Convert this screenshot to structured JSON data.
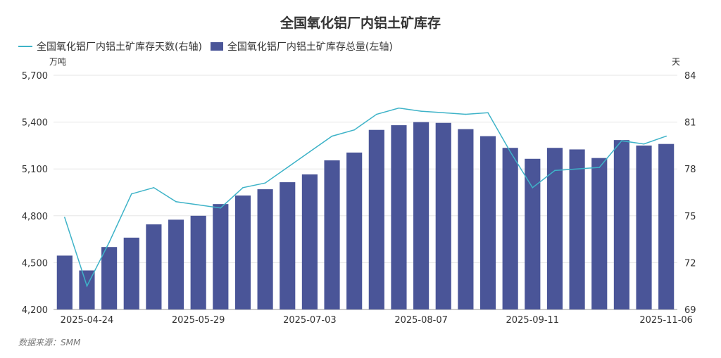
{
  "chart_data": {
    "type": "bar",
    "title": "全国氧化铝厂内铝土矿库存",
    "left_unit": "万吨",
    "right_unit": "天",
    "source": "数据来源：SMM",
    "x_tick_labels": [
      "2025-04-24",
      "2025-05-29",
      "2025-07-03",
      "2025-08-07",
      "2025-09-11",
      "2025-11-06"
    ],
    "x_tick_indices": [
      1,
      6,
      11,
      16,
      21,
      27
    ],
    "left_axis": {
      "min": 4200,
      "max": 5700,
      "ticks": [
        "4,200",
        "4,500",
        "4,800",
        "5,100",
        "5,400",
        "5,700"
      ]
    },
    "right_axis": {
      "min": 69,
      "max": 84,
      "ticks": [
        "69",
        "72",
        "75",
        "78",
        "81",
        "84"
      ]
    },
    "colors": {
      "bar": "#4a5598",
      "line": "#3eb3c8"
    },
    "series": [
      {
        "name": "全国氧化铝厂内铝土矿库存总量(左轴)",
        "type": "bar",
        "axis": "left",
        "values": [
          4545,
          4450,
          4600,
          4660,
          4745,
          4775,
          4800,
          4875,
          4930,
          4970,
          5015,
          5065,
          5155,
          5205,
          5350,
          5380,
          5400,
          5395,
          5355,
          5310,
          5235,
          5165,
          5235,
          5225,
          5170,
          5285,
          5250,
          5260
        ]
      },
      {
        "name": "全国氧化铝厂内铝土矿库存天数(右轴)",
        "type": "line",
        "axis": "right",
        "values": [
          74.9,
          70.5,
          73.3,
          76.4,
          76.8,
          75.9,
          75.7,
          75.5,
          76.8,
          77.1,
          78.1,
          79.1,
          80.1,
          80.5,
          81.5,
          81.9,
          81.7,
          81.6,
          81.5,
          81.6,
          79.1,
          76.8,
          77.9,
          78.0,
          78.1,
          79.8,
          79.6,
          80.1
        ]
      }
    ]
  }
}
